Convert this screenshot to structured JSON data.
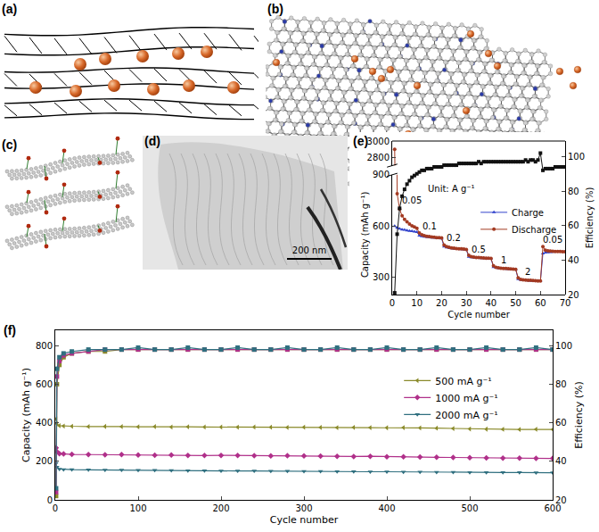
{
  "panels": [
    {
      "label": "(a)"
    },
    {
      "label": "(b)"
    },
    {
      "label": "(c)"
    },
    {
      "label": "(d)",
      "scale_bar": "200 nm"
    }
  ],
  "chart_data": [
    {
      "title": "(e)",
      "type": "line",
      "x": [
        1,
        2,
        3,
        4,
        5,
        6,
        7,
        8,
        9,
        10,
        11,
        12,
        13,
        14,
        15,
        16,
        17,
        18,
        19,
        20,
        21,
        22,
        23,
        24,
        25,
        26,
        27,
        28,
        29,
        30,
        31,
        32,
        33,
        34,
        35,
        36,
        37,
        38,
        39,
        40,
        41,
        42,
        43,
        44,
        45,
        46,
        47,
        48,
        49,
        50,
        51,
        52,
        53,
        54,
        55,
        56,
        57,
        58,
        59,
        60,
        61,
        62,
        63,
        64,
        65,
        66,
        67,
        68,
        69,
        70
      ],
      "xlim": [
        0,
        70
      ],
      "xticks": [
        0,
        10,
        20,
        30,
        40,
        50,
        60,
        70
      ],
      "ylim": [
        200,
        3000
      ],
      "ybreak": [
        900,
        2700
      ],
      "yticks": [
        300,
        600,
        900,
        2800,
        3000
      ],
      "y2lim": [
        20,
        109
      ],
      "y2ticks": [
        20,
        40,
        60,
        80,
        100
      ],
      "xlabel": "Cycle number",
      "ylabel": "Capacity (mAh g⁻¹)",
      "y2label": "Efficiency (%)",
      "legend": "right",
      "grid": false,
      "annotations": [
        {
          "text": "Unit: A g⁻¹",
          "x": 24,
          "y": 820
        },
        {
          "text": "0.05",
          "x": 8,
          "y": 750
        },
        {
          "text": "0.1",
          "x": 15,
          "y": 600
        },
        {
          "text": "0.2",
          "x": 25,
          "y": 530
        },
        {
          "text": "0.5",
          "x": 35,
          "y": 465
        },
        {
          "text": "1",
          "x": 45,
          "y": 400
        },
        {
          "text": "2",
          "x": 55,
          "y": 335
        },
        {
          "text": "0.05",
          "x": 65,
          "y": 520
        }
      ],
      "series": [
        {
          "name": "Charge",
          "color": "#3344cc",
          "marker": "triangle-up",
          "values": [
            600,
            590,
            585,
            580,
            578,
            575,
            572,
            570,
            568,
            565,
            545,
            540,
            538,
            536,
            535,
            533,
            532,
            530,
            530,
            528,
            480,
            475,
            472,
            470,
            468,
            467,
            466,
            465,
            464,
            462,
            420,
            418,
            416,
            415,
            414,
            413,
            412,
            411,
            410,
            410,
            360,
            356,
            354,
            352,
            351,
            350,
            349,
            348,
            348,
            347,
            290,
            286,
            284,
            283,
            282,
            281,
            280,
            280,
            279,
            278,
            440,
            445,
            447,
            448,
            449,
            450,
            450,
            450,
            450,
            451
          ]
        },
        {
          "name": "Discharge",
          "color": "#a33a22",
          "marker": "circle",
          "values": [
            2900,
            790,
            700,
            660,
            640,
            625,
            612,
            602,
            595,
            588,
            560,
            550,
            545,
            541,
            539,
            537,
            535,
            533,
            532,
            531,
            490,
            480,
            476,
            473,
            471,
            469,
            468,
            467,
            466,
            464,
            430,
            422,
            419,
            417,
            416,
            415,
            414,
            413,
            412,
            411,
            368,
            359,
            356,
            354,
            353,
            352,
            351,
            350,
            349,
            348,
            298,
            289,
            286,
            285,
            284,
            283,
            282,
            281,
            280,
            279,
            480,
            460,
            456,
            454,
            453,
            452,
            452,
            452,
            451,
            451
          ]
        },
        {
          "color": "#111111",
          "marker": "square",
          "axis": "y2",
          "values": [
            21,
            55,
            70,
            77,
            81,
            84,
            86,
            88,
            89,
            90,
            91,
            92,
            92,
            93,
            93,
            93,
            94,
            94,
            94,
            94,
            95,
            95,
            95,
            95,
            95,
            95,
            96,
            96,
            96,
            96,
            96,
            96,
            96,
            96,
            97,
            96,
            97,
            97,
            97,
            97,
            97,
            97,
            97,
            97,
            97,
            97,
            97,
            97,
            97,
            97,
            97,
            97,
            97,
            98,
            97,
            98,
            98,
            97,
            98,
            102,
            92,
            93,
            93,
            93,
            93,
            94,
            94,
            94,
            94,
            94
          ]
        }
      ]
    },
    {
      "title": "(f)",
      "type": "line",
      "x": [
        1,
        2,
        5,
        10,
        20,
        40,
        60,
        80,
        100,
        120,
        140,
        160,
        180,
        200,
        220,
        240,
        260,
        280,
        300,
        320,
        340,
        360,
        380,
        400,
        420,
        440,
        460,
        480,
        500,
        520,
        540,
        560,
        580,
        600
      ],
      "xlim": [
        0,
        600
      ],
      "xticks": [
        0,
        100,
        200,
        300,
        400,
        500,
        600
      ],
      "ylim": [
        0,
        880
      ],
      "yticks": [
        0,
        200,
        400,
        600,
        800
      ],
      "y2lim": [
        20,
        108
      ],
      "y2ticks": [
        20,
        40,
        60,
        80,
        100
      ],
      "xlabel": "Cycle number",
      "ylabel": "Capacity (mAh g⁻¹)",
      "y2label": "Efficiency (%)",
      "legend": "right",
      "grid": false,
      "series": [
        {
          "name": "500 mA g⁻¹",
          "color": "#8a8a2a",
          "marker": "triangle-left",
          "values": [
            420,
            395,
            385,
            383,
            382,
            380,
            381,
            380,
            379,
            380,
            378,
            379,
            378,
            378,
            377,
            378,
            377,
            376,
            377,
            376,
            375,
            376,
            375,
            374,
            375,
            373,
            372,
            370,
            368,
            367,
            366,
            365,
            366,
            365
          ]
        },
        {
          "name": "1000 mA g⁻¹",
          "color": "#b0308a",
          "marker": "diamond",
          "values": [
            270,
            250,
            240,
            238,
            236,
            235,
            234,
            235,
            233,
            232,
            233,
            231,
            230,
            231,
            230,
            229,
            228,
            229,
            228,
            227,
            226,
            225,
            226,
            224,
            223,
            222,
            221,
            220,
            219,
            218,
            217,
            216,
            215,
            215
          ]
        },
        {
          "name": "2000 mA g⁻¹",
          "color": "#2f6f7f",
          "marker": "triangle-down",
          "values": [
            190,
            170,
            160,
            158,
            157,
            156,
            155,
            155,
            154,
            154,
            153,
            152,
            152,
            151,
            150,
            150,
            149,
            149,
            148,
            148,
            147,
            147,
            146,
            146,
            145,
            145,
            144,
            144,
            143,
            143,
            142,
            142,
            141,
            141
          ]
        },
        {
          "color": "#8a8a2a",
          "marker": "square",
          "axis": "y2",
          "values": [
            22,
            80,
            90,
            94,
            96,
            97,
            97,
            98,
            98,
            98,
            98,
            98,
            98,
            98,
            98,
            98,
            98,
            98,
            98,
            98,
            98,
            98,
            98,
            98,
            98,
            98,
            98,
            98,
            98,
            98,
            98,
            98,
            98,
            98
          ]
        },
        {
          "color": "#b0308a",
          "marker": "square",
          "axis": "y2",
          "values": [
            24,
            84,
            92,
            95,
            96,
            97,
            98,
            98,
            98,
            98,
            98,
            98,
            98,
            98,
            98,
            98,
            98,
            98,
            98,
            98,
            98,
            98,
            98,
            98,
            98,
            98,
            98,
            98,
            98,
            98,
            98,
            98,
            98,
            98
          ]
        },
        {
          "color": "#2f6f7f",
          "marker": "square",
          "axis": "y2",
          "values": [
            26,
            88,
            94,
            96,
            97,
            98,
            98,
            98,
            99,
            98,
            98,
            99,
            98,
            98,
            99,
            98,
            98,
            99,
            98,
            98,
            99,
            98,
            98,
            99,
            98,
            98,
            99,
            98,
            98,
            99,
            98,
            98,
            99,
            98
          ]
        }
      ]
    }
  ]
}
